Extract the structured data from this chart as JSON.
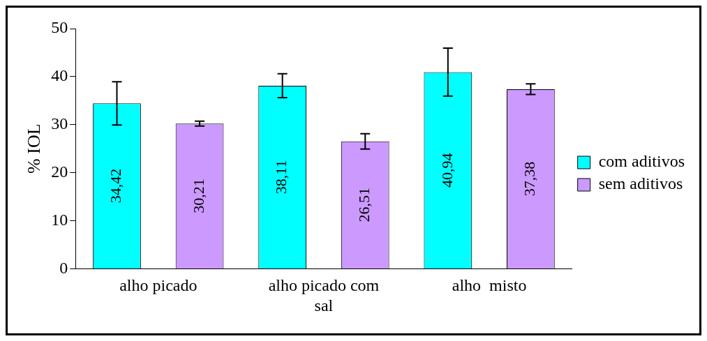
{
  "chart_data": {
    "type": "bar",
    "ylabel": "% IOL",
    "categories": [
      "alho picado",
      "alho picado com sal",
      "alho  misto"
    ],
    "series": [
      {
        "name": "com aditivos",
        "color": "#00ffff",
        "values": [
          34.42,
          38.11,
          40.94
        ],
        "value_labels": [
          "34,42",
          "38,11",
          "40,94"
        ],
        "errors": [
          4.5,
          2.5,
          5
        ]
      },
      {
        "name": "sem aditivos",
        "color": "#cc99ff",
        "values": [
          30.21,
          26.51,
          37.38
        ],
        "value_labels": [
          "30,21",
          "26,51",
          "37,38"
        ],
        "errors": [
          0.5,
          1.6,
          1.1
        ]
      }
    ],
    "ylim": [
      0,
      50
    ],
    "yticks": [
      0,
      10,
      20,
      30,
      40,
      50
    ],
    "grid": false,
    "legend": "right"
  }
}
